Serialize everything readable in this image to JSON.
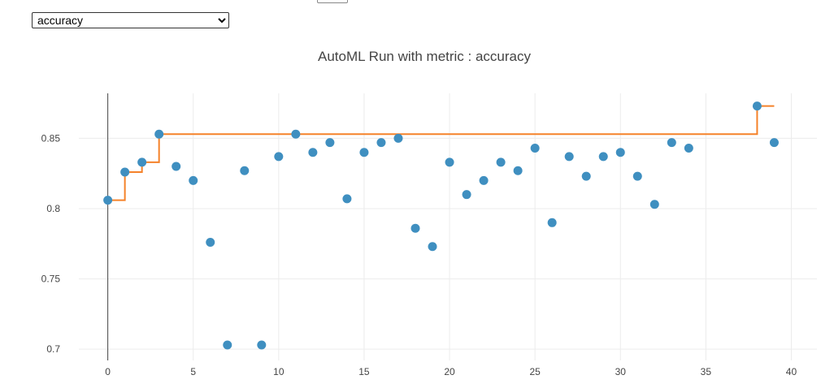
{
  "controls": {
    "metric_options": [
      "accuracy"
    ],
    "metric_selected": "accuracy"
  },
  "chart_data": {
    "type": "scatter",
    "title": "AutoML Run with metric : accuracy",
    "xlabel": "",
    "ylabel": "",
    "xlim": [
      -5.5,
      41.5
    ],
    "ylim": [
      0.692,
      0.882
    ],
    "xticks": [
      0,
      5,
      10,
      15,
      20,
      25,
      30,
      35,
      40
    ],
    "yticks": [
      0.7,
      0.75,
      0.8,
      0.85
    ],
    "ytick_labels": [
      "0.7",
      "0.75",
      "0.8",
      "0.85"
    ],
    "grid": true,
    "colors": {
      "points": "#3f8fc0",
      "best_line": "#f5822a",
      "grid": "#ececec",
      "zeroline": "#444444",
      "text": "#444444"
    },
    "series": [
      {
        "kind": "scatter",
        "x": [
          0,
          1,
          2,
          3,
          4,
          5,
          6,
          7,
          8,
          9,
          10,
          11,
          12,
          13,
          14,
          15,
          16,
          17,
          18,
          19,
          20,
          21,
          22,
          23,
          24,
          25,
          26,
          27,
          28,
          29,
          30,
          31,
          32,
          33,
          34,
          38,
          39
        ],
        "y": [
          0.806,
          0.826,
          0.833,
          0.853,
          0.83,
          0.82,
          0.776,
          0.703,
          0.827,
          0.703,
          0.837,
          0.853,
          0.84,
          0.847,
          0.807,
          0.84,
          0.847,
          0.85,
          0.786,
          0.773,
          0.833,
          0.81,
          0.82,
          0.833,
          0.827,
          0.843,
          0.79,
          0.837,
          0.823,
          0.837,
          0.84,
          0.823,
          0.803,
          0.847,
          0.843,
          0.873,
          0.847
        ]
      },
      {
        "kind": "step",
        "x": [
          0,
          1,
          2,
          3,
          38,
          39
        ],
        "y": [
          0.806,
          0.826,
          0.833,
          0.853,
          0.873,
          0.873
        ]
      }
    ]
  }
}
